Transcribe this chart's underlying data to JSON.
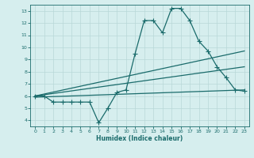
{
  "xlabel": "Humidex (Indice chaleur)",
  "xlim": [
    -0.5,
    23.5
  ],
  "ylim": [
    3.5,
    13.5
  ],
  "xticks": [
    0,
    1,
    2,
    3,
    4,
    5,
    6,
    7,
    8,
    9,
    10,
    11,
    12,
    13,
    14,
    15,
    16,
    17,
    18,
    19,
    20,
    21,
    22,
    23
  ],
  "yticks": [
    4,
    5,
    6,
    7,
    8,
    9,
    10,
    11,
    12,
    13
  ],
  "bg_color": "#d6eeee",
  "line_color": "#1a6b6b",
  "grid_color": "#b8d8d8",
  "line1_x": [
    0,
    1,
    2,
    3,
    4,
    5,
    6,
    7,
    8,
    9,
    10,
    11,
    12,
    13,
    14,
    15,
    16,
    17,
    18,
    19,
    20,
    21,
    22,
    23
  ],
  "line1_y": [
    6.0,
    6.0,
    5.5,
    5.5,
    5.5,
    5.5,
    5.5,
    3.8,
    5.0,
    6.3,
    6.5,
    9.5,
    12.2,
    12.2,
    11.2,
    13.2,
    13.2,
    12.2,
    10.5,
    9.7,
    8.4,
    7.5,
    6.5,
    6.4
  ],
  "line2_x": [
    0,
    23
  ],
  "line2_y": [
    6.0,
    9.7
  ],
  "line3_x": [
    0,
    23
  ],
  "line3_y": [
    6.0,
    8.4
  ],
  "line4_x": [
    0,
    23
  ],
  "line4_y": [
    5.9,
    6.5
  ]
}
